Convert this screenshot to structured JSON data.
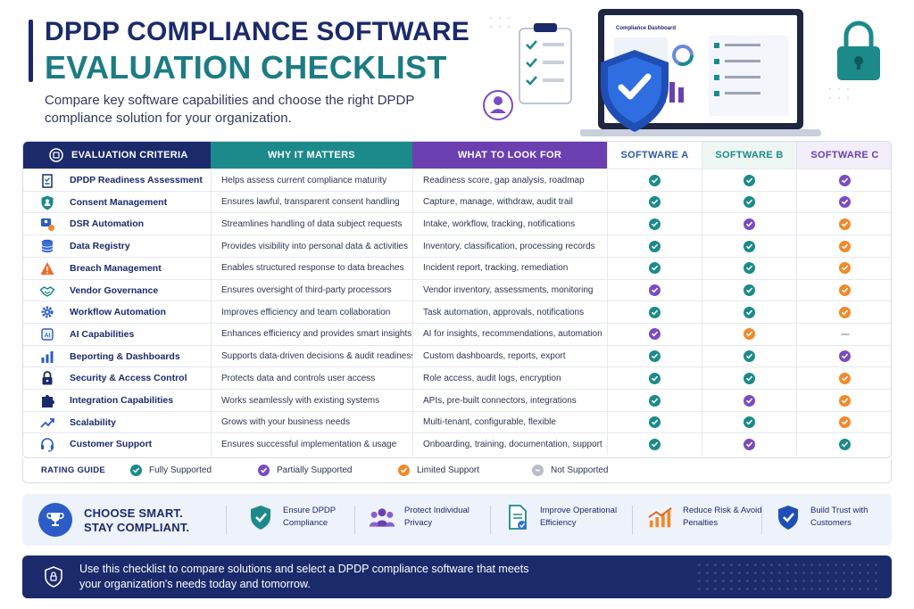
{
  "header": {
    "title_line1": "DPDP COMPLIANCE SOFTWARE",
    "title_line2": "EVALUATION CHECKLIST",
    "subtitle": "Compare key software capabilities and choose the right DPDP compliance solution for your organization."
  },
  "hero": {
    "dashboard_title": "Compliance Dashboard"
  },
  "colors": {
    "full": "#1c8a8a",
    "partial": "#7a4cc2",
    "limited": "#f08a2a",
    "none": "#b9bec9",
    "navy": "#1b2a6b"
  },
  "table": {
    "headers": {
      "criteria": "EVALUATION CRITERIA",
      "why": "WHY IT MATTERS",
      "look": "WHAT TO LOOK FOR",
      "a": "SOFTWARE A",
      "b": "SOFTWARE B",
      "c": "SOFTWARE C"
    },
    "rows": [
      {
        "icon": "clipboard-check-icon",
        "criteria": "DPDP Readiness Assessment",
        "why": "Helps assess current compliance maturity",
        "look": "Readiness score, gap analysis, roadmap",
        "a": "full",
        "b": "full",
        "c": "partial"
      },
      {
        "icon": "shield-user-icon",
        "criteria": "Consent Management",
        "why": "Ensures lawful, transparent consent handling",
        "look": "Capture, manage, withdraw, audit trail",
        "a": "full",
        "b": "full",
        "c": "partial"
      },
      {
        "icon": "user-request-icon",
        "criteria": "DSR Automation",
        "why": "Streamlines handling of data subject requests",
        "look": "Intake, workflow, tracking, notifications",
        "a": "full",
        "b": "partial",
        "c": "limited"
      },
      {
        "icon": "database-icon",
        "criteria": "Data Registry",
        "why": "Provides visibility into personal data & activities",
        "look": "Inventory, classification, processing records",
        "a": "full",
        "b": "full",
        "c": "limited"
      },
      {
        "icon": "warning-icon",
        "criteria": "Breach Management",
        "why": "Enables structured response to data breaches",
        "look": "Incident report, tracking, remediation",
        "a": "full",
        "b": "full",
        "c": "limited"
      },
      {
        "icon": "handshake-icon",
        "criteria": "Vendor Governance",
        "why": "Ensures oversight of third-party processors",
        "look": "Vendor inventory, assessments, monitoring",
        "a": "partial",
        "b": "full",
        "c": "limited"
      },
      {
        "icon": "gear-icon",
        "criteria": "Workflow Automation",
        "why": "Improves efficiency and team collaboration",
        "look": "Task automation, approvals, notifications",
        "a": "full",
        "b": "full",
        "c": "limited"
      },
      {
        "icon": "ai-chip-icon",
        "criteria": "AI Capabilities",
        "why": "Enhances efficiency and provides smart insights",
        "look": "AI for insights, recommendations, automation",
        "a": "partial",
        "b": "limited",
        "c": "none"
      },
      {
        "icon": "bar-chart-icon",
        "criteria": "Beporting & Dashboards",
        "why": "Supports data-driven decisions & audit readiness",
        "look": "Custom dashboards, reports, export",
        "a": "full",
        "b": "full",
        "c": "partial"
      },
      {
        "icon": "lock-icon",
        "criteria": "Security & Access Control",
        "why": "Protects data and controls user access",
        "look": "Role access, audit logs, encryption",
        "a": "full",
        "b": "full",
        "c": "limited"
      },
      {
        "icon": "puzzle-icon",
        "criteria": "Integration Capabilities",
        "why": "Works seamlessly with existing systems",
        "look": "APIs, pre-built connectors, integrations",
        "a": "full",
        "b": "partial",
        "c": "limited"
      },
      {
        "icon": "trend-up-icon",
        "criteria": "Scalability",
        "why": "Grows with your business needs",
        "look": "Multi-tenant, configurable, flexible",
        "a": "full",
        "b": "full",
        "c": "limited"
      },
      {
        "icon": "headset-icon",
        "criteria": "Customer Support",
        "why": "Ensures successful implementation & usage",
        "look": "Onboarding, training, documentation, support",
        "a": "full",
        "b": "partial",
        "c": "full"
      }
    ]
  },
  "rating_guide": {
    "label": "RATING GUIDE",
    "full": "Fully Supported",
    "partial": "Partially Supported",
    "limited": "Limited Support",
    "none": "Not Supported"
  },
  "benefits": {
    "slogan_line1": "CHOOSE SMART.",
    "slogan_line2": "STAY COMPLIANT.",
    "items": [
      {
        "icon": "shield-check-icon",
        "label": "Ensure DPDP Compliance"
      },
      {
        "icon": "people-icon",
        "label": "Protect Individual Privacy"
      },
      {
        "icon": "document-check-icon",
        "label": "Improve Operational Efficiency"
      },
      {
        "icon": "trend-up-icon",
        "label": "Reduce Risk & Avoid Penalties"
      },
      {
        "icon": "shield-check-icon",
        "label": "Build Trust with Customers"
      }
    ]
  },
  "footer": {
    "text": "Use this checklist to compare solutions and select a DPDP compliance software that meets your organization's needs today and tomorrow."
  }
}
